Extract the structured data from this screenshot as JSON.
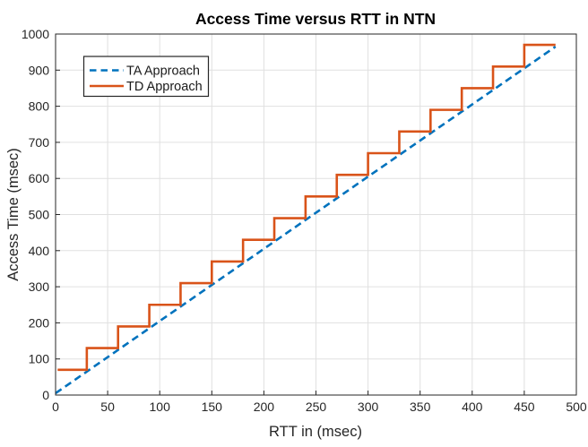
{
  "chart_data": {
    "type": "line",
    "title": "Access Time versus RTT in NTN",
    "xlabel": "RTT in (msec)",
    "ylabel": "Access Time (msec)",
    "xlim": [
      0,
      500
    ],
    "ylim": [
      0,
      1000
    ],
    "xticks": [
      0,
      50,
      100,
      150,
      200,
      250,
      300,
      350,
      400,
      450,
      500
    ],
    "yticks": [
      0,
      100,
      200,
      300,
      400,
      500,
      600,
      700,
      800,
      900,
      1000
    ],
    "grid": true,
    "axis_color": "#262626",
    "grid_color": "#e0e0e0",
    "tick_label_color": "#262626",
    "background_color": "#ffffff",
    "legend": {
      "position": "northwest",
      "border_color": "#262626",
      "background": "#ffffff",
      "entries": [
        "TA Approach",
        "TD Approach"
      ]
    },
    "series": [
      {
        "name": "TA Approach",
        "color": "#0072BD",
        "line_style": "dashed",
        "line_width": 2.6,
        "points": [
          [
            0,
            5
          ],
          [
            480,
            965
          ]
        ]
      },
      {
        "name": "TD Approach",
        "color": "#D95319",
        "line_style": "solid",
        "line_width": 2.6,
        "points": [
          [
            2,
            70
          ],
          [
            30,
            70
          ],
          [
            30,
            130
          ],
          [
            60,
            130
          ],
          [
            60,
            190
          ],
          [
            90,
            190
          ],
          [
            90,
            250
          ],
          [
            120,
            250
          ],
          [
            120,
            310
          ],
          [
            150,
            310
          ],
          [
            150,
            370
          ],
          [
            180,
            370
          ],
          [
            180,
            430
          ],
          [
            210,
            430
          ],
          [
            210,
            490
          ],
          [
            240,
            490
          ],
          [
            240,
            550
          ],
          [
            270,
            550
          ],
          [
            270,
            610
          ],
          [
            300,
            610
          ],
          [
            300,
            670
          ],
          [
            330,
            670
          ],
          [
            330,
            730
          ],
          [
            360,
            730
          ],
          [
            360,
            790
          ],
          [
            390,
            790
          ],
          [
            390,
            850
          ],
          [
            420,
            850
          ],
          [
            420,
            910
          ],
          [
            450,
            910
          ],
          [
            450,
            970
          ],
          [
            480,
            970
          ]
        ]
      }
    ]
  }
}
